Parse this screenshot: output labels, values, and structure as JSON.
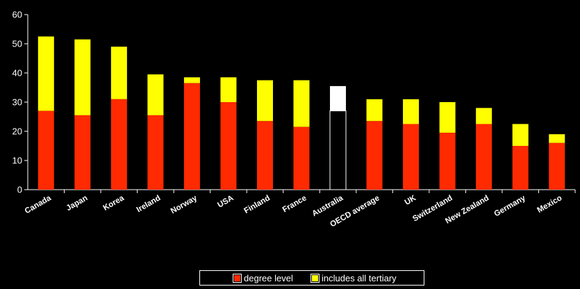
{
  "chart_data": {
    "type": "bar",
    "stacked": true,
    "categories": [
      "Canada",
      "Japan",
      "Korea",
      "Ireland",
      "Norway",
      "USA",
      "Finland",
      "France",
      "Australia",
      "OECD average",
      "UK",
      "Switzerland",
      "New Zealand",
      "Germany",
      "Mexico"
    ],
    "series": [
      {
        "name": "degree level",
        "color": "#ff2a00",
        "values": [
          27,
          25.5,
          31,
          25.5,
          36.5,
          30,
          23.5,
          21.5,
          27,
          23.5,
          22.5,
          19.5,
          22.5,
          15,
          16
        ]
      },
      {
        "name": "includes all tertiary",
        "color": "#ffff00",
        "totals": [
          52.5,
          51.5,
          49,
          39.5,
          38.5,
          38.5,
          37.5,
          37.5,
          35.5,
          31,
          31,
          30,
          28,
          22.5,
          19
        ]
      }
    ],
    "highlight": {
      "category": "Australia",
      "base_color": "#000000",
      "top_color": "#ffffff",
      "outline_color": "#ffffff"
    },
    "ylim": [
      0,
      60
    ],
    "yticks": [
      0,
      10,
      20,
      30,
      40,
      50,
      60
    ],
    "grid": false,
    "legend_position": "bottom-center",
    "colors": {
      "background": "#000000",
      "axis": "#ffffff",
      "text": "#ffffff"
    }
  },
  "legend": {
    "items": [
      "degree level",
      "includes all tertiary"
    ]
  }
}
